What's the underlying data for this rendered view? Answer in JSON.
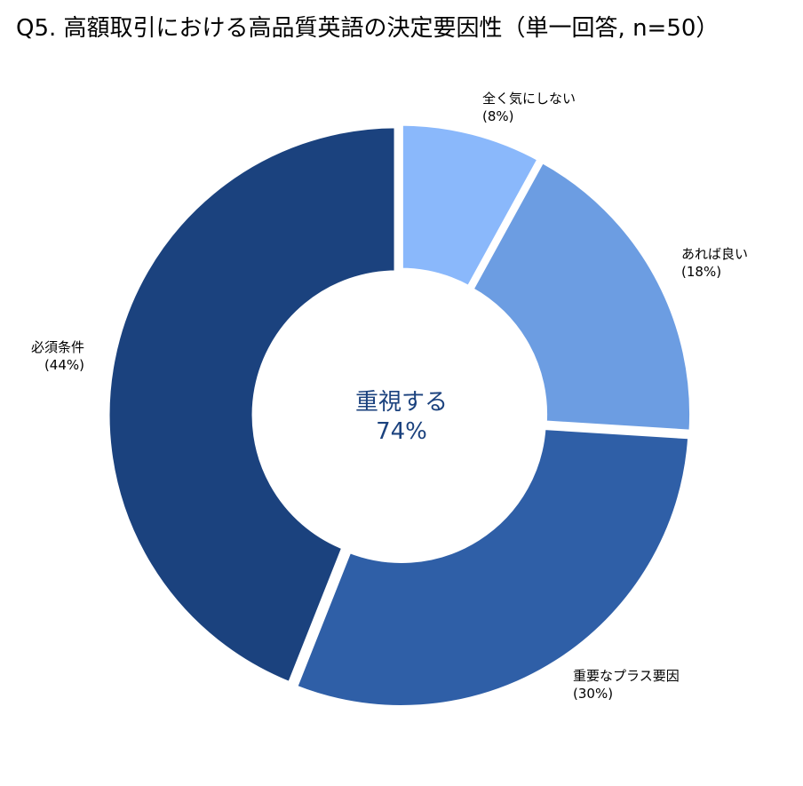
{
  "chart_data": {
    "type": "pie",
    "style": "donut",
    "title": "Q5. 高額取引における高品質英語の決定要因性（単一回答, n=50）",
    "slices": [
      {
        "label": "全く気にしない",
        "value_label": "(8%)",
        "value": 8,
        "color": "#8ab8fb"
      },
      {
        "label": "あれば良い",
        "value_label": "(18%)",
        "value": 18,
        "color": "#6c9de2"
      },
      {
        "label": "重要なプラス要因",
        "value_label": "(30%)",
        "value": 30,
        "color": "#2f5fa7"
      },
      {
        "label": "必須条件",
        "value_label": "(44%)",
        "value": 44,
        "color": "#1b427e"
      }
    ],
    "center": {
      "line1": "重視する",
      "line2": "74%",
      "color": "#1b427e"
    },
    "start_angle_deg": 0,
    "direction": "clockwise",
    "legend": "none"
  }
}
